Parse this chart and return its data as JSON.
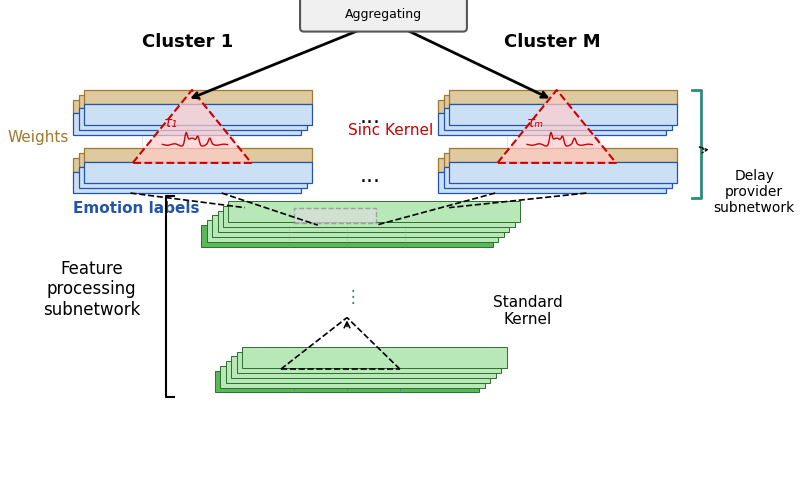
{
  "bg_color": "#ffffff",
  "blue_fill": "#cce0f5",
  "blue_edge": "#2255aa",
  "tan_fill": "#dfc9a0",
  "tan_edge": "#a07830",
  "green_fill": "#5ab85a",
  "green_edge": "#2d6e2d",
  "green_light": "#b8e8b8",
  "red_fill": "#ffcccc",
  "red_edge": "#cc0000",
  "teal": "#2d8b7a",
  "gray_dashed": "#888888",
  "cluster1_label": "Cluster 1",
  "clusterM_label": "Cluster M",
  "weights_label": "Weights",
  "emotion_label": "Emotion labels",
  "sinc_label": "Sinc Kernel",
  "delay_label": "Delay\nprovider\nsubnetwork",
  "feature_label": "Feature\nprocessing\nsubnetwork",
  "std_kernel_label": "Standard\nKernel",
  "tau1_label": "τ₁",
  "tauM_label": "τₘ",
  "dots_label": "...",
  "vdots_label": "⋮"
}
